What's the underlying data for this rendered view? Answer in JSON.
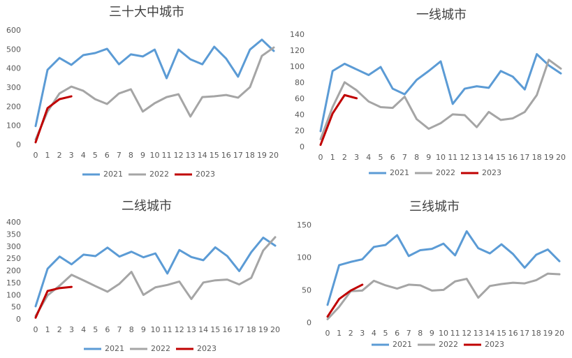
{
  "chart_data": [
    {
      "type": "line",
      "title": "三十大中城市",
      "x": [
        0,
        1,
        2,
        3,
        4,
        5,
        6,
        7,
        8,
        9,
        10,
        11,
        12,
        13,
        14,
        15,
        16,
        17,
        18,
        19,
        20
      ],
      "xlim": [
        0,
        20
      ],
      "ylim": [
        0,
        600
      ],
      "yticks": [
        0,
        100,
        200,
        300,
        400,
        500,
        600
      ],
      "grid": false,
      "legend": "bottom",
      "series": [
        {
          "name": "2021",
          "color": "#5b9bd5",
          "values": [
            100,
            395,
            457,
            421,
            472,
            483,
            505,
            424,
            476,
            465,
            501,
            351,
            501,
            450,
            424,
            516,
            454,
            359,
            501,
            553,
            494
          ]
        },
        {
          "name": "2022",
          "color": "#a5a5a5",
          "values": [
            30,
            176,
            271,
            307,
            285,
            241,
            216,
            271,
            293,
            176,
            220,
            252,
            267,
            150,
            252,
            256,
            263,
            249,
            304,
            468,
            512
          ]
        },
        {
          "name": "2023",
          "color": "#c00000",
          "values": [
            15,
            194,
            241,
            256,
            null,
            null,
            null,
            null,
            null,
            null,
            null,
            null,
            null,
            null,
            null,
            null,
            null,
            null,
            null,
            null,
            null
          ]
        }
      ]
    },
    {
      "type": "line",
      "title": "一线城市",
      "x": [
        0,
        1,
        2,
        3,
        4,
        5,
        6,
        7,
        8,
        9,
        10,
        11,
        12,
        13,
        14,
        15,
        16,
        17,
        18,
        19,
        20
      ],
      "xlim": [
        0,
        20
      ],
      "ylim": [
        0,
        140
      ],
      "yticks": [
        0,
        20,
        40,
        60,
        80,
        100,
        120,
        140
      ],
      "grid": false,
      "legend": "bottom",
      "series": [
        {
          "name": "2021",
          "color": "#5b9bd5",
          "values": [
            20,
            95,
            104,
            97,
            90,
            100,
            73,
            66,
            84,
            95,
            107,
            54,
            73,
            76,
            74,
            95,
            88,
            72,
            116,
            102,
            92
          ]
        },
        {
          "name": "2022",
          "color": "#a5a5a5",
          "values": [
            10,
            50,
            81,
            71,
            57,
            50,
            49,
            63,
            35,
            23,
            30,
            41,
            40,
            25,
            44,
            34,
            36,
            44,
            65,
            109,
            98
          ]
        },
        {
          "name": "2023",
          "color": "#c00000",
          "values": [
            3,
            42,
            65,
            61,
            null,
            null,
            null,
            null,
            null,
            null,
            null,
            null,
            null,
            null,
            null,
            null,
            null,
            null,
            null,
            null,
            null
          ]
        }
      ]
    },
    {
      "type": "line",
      "title": "二线城市",
      "x": [
        0,
        1,
        2,
        3,
        4,
        5,
        6,
        7,
        8,
        9,
        10,
        11,
        12,
        13,
        14,
        15,
        16,
        17,
        18,
        19,
        20
      ],
      "xlim": [
        0,
        20
      ],
      "ylim": [
        0,
        400
      ],
      "yticks": [
        0,
        50,
        100,
        150,
        200,
        250,
        300,
        350,
        400
      ],
      "grid": false,
      "legend": "bottom",
      "series": [
        {
          "name": "2021",
          "color": "#5b9bd5",
          "values": [
            55,
            210,
            260,
            228,
            268,
            262,
            297,
            260,
            280,
            257,
            273,
            190,
            287,
            258,
            245,
            298,
            262,
            200,
            278,
            338,
            305
          ]
        },
        {
          "name": "2022",
          "color": "#a5a5a5",
          "values": [
            15,
            100,
            140,
            185,
            162,
            138,
            115,
            148,
            197,
            102,
            133,
            143,
            157,
            85,
            153,
            162,
            165,
            145,
            172,
            285,
            340
          ]
        },
        {
          "name": "2023",
          "color": "#c00000",
          "values": [
            8,
            118,
            130,
            135,
            null,
            null,
            null,
            null,
            null,
            null,
            null,
            null,
            null,
            null,
            null,
            null,
            null,
            null,
            null,
            null,
            null
          ]
        }
      ]
    },
    {
      "type": "line",
      "title": "三线城市",
      "x": [
        0,
        1,
        2,
        3,
        4,
        5,
        6,
        7,
        8,
        9,
        10,
        11,
        12,
        13,
        14,
        15,
        16,
        17,
        18,
        19,
        20
      ],
      "xlim": [
        0,
        20
      ],
      "ylim": [
        0,
        150
      ],
      "yticks": [
        0,
        50,
        100,
        150
      ],
      "grid": false,
      "legend": "bottom",
      "series": [
        {
          "name": "2021",
          "color": "#5b9bd5",
          "values": [
            28,
            89,
            94,
            98,
            117,
            120,
            135,
            103,
            112,
            114,
            122,
            104,
            141,
            115,
            107,
            121,
            106,
            85,
            105,
            113,
            95
          ]
        },
        {
          "name": "2022",
          "color": "#a5a5a5",
          "values": [
            6,
            25,
            49,
            50,
            65,
            58,
            53,
            59,
            58,
            50,
            51,
            64,
            68,
            39,
            57,
            60,
            62,
            61,
            66,
            76,
            75
          ]
        },
        {
          "name": "2023",
          "color": "#c00000",
          "values": [
            10,
            37,
            50,
            59,
            null,
            null,
            null,
            null,
            null,
            null,
            null,
            null,
            null,
            null,
            null,
            null,
            null,
            null,
            null,
            null,
            null
          ]
        }
      ]
    }
  ]
}
